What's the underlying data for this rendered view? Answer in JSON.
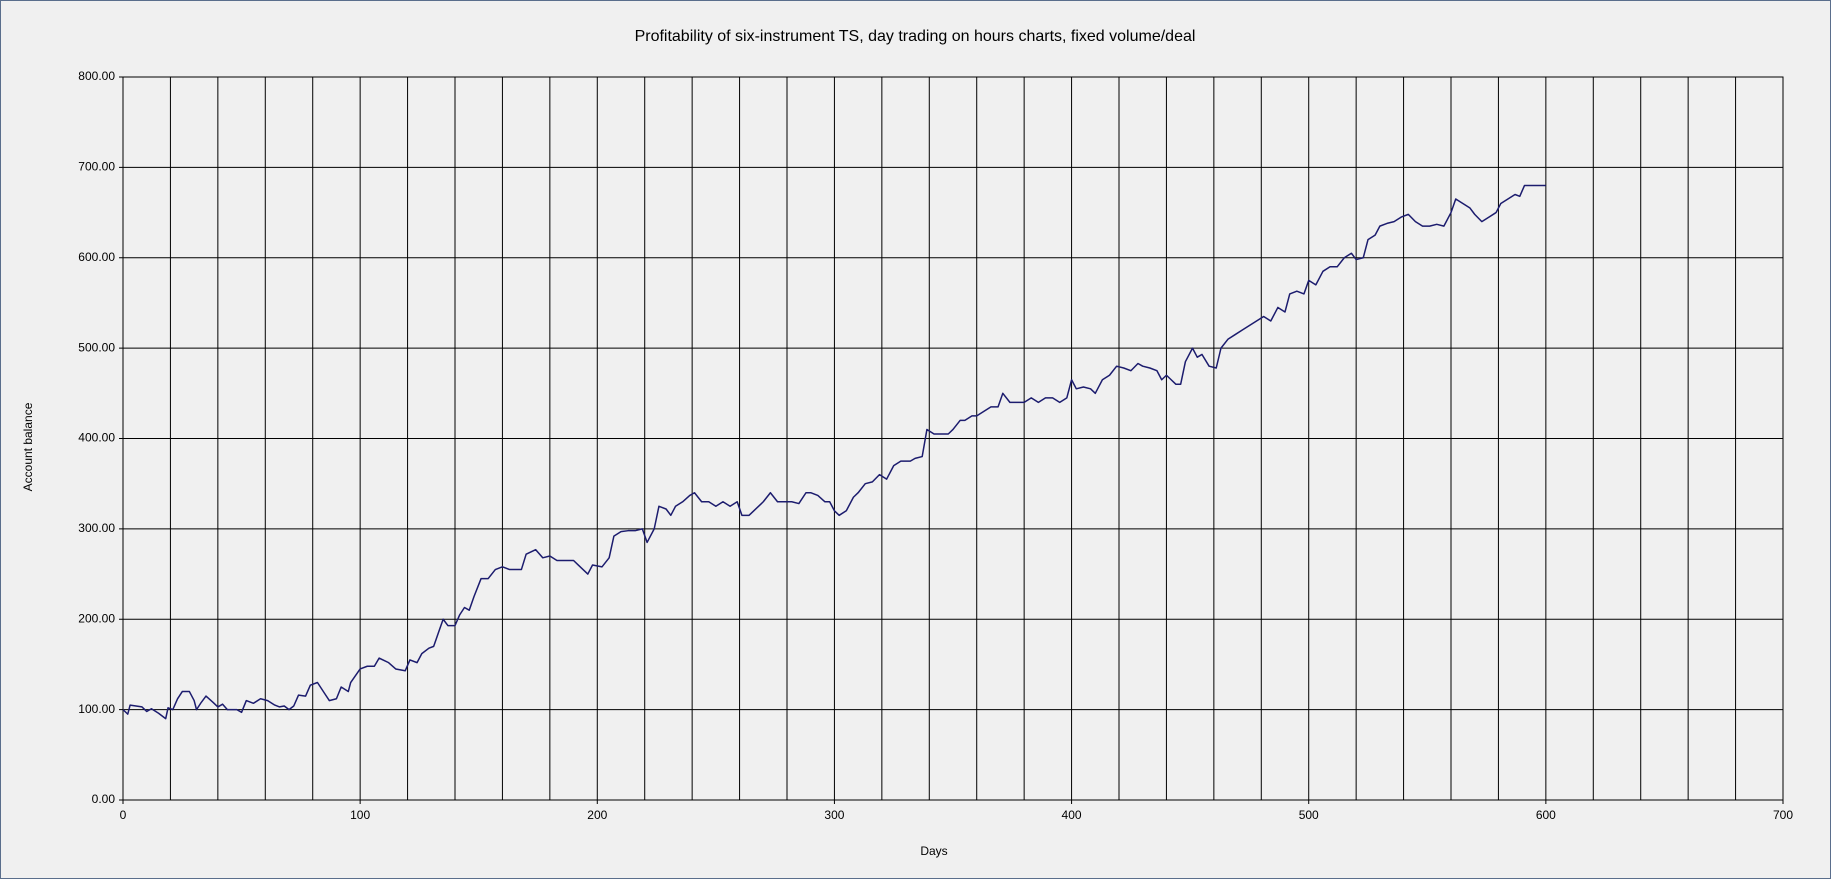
{
  "chart_data": {
    "type": "line",
    "title": "Profitability of six-instrument TS, day trading on hours charts, fixed volume/deal",
    "xlabel": "Days",
    "ylabel": "Account balance",
    "color": "#1c1c6e",
    "grid": true,
    "xlim": [
      0,
      700
    ],
    "xticks": [
      0,
      100,
      200,
      300,
      400,
      500,
      600,
      700
    ],
    "xgrid": [
      0,
      20,
      40,
      60,
      80,
      100,
      120,
      140,
      160,
      180,
      200,
      220,
      240,
      260,
      280,
      300,
      320,
      340,
      360,
      380,
      400,
      420,
      440,
      460,
      480,
      500,
      520,
      540,
      560,
      580,
      600,
      620,
      640,
      660,
      680,
      700
    ],
    "ylim": [
      0,
      800
    ],
    "yticks": [
      {
        "value": 0,
        "label": "0.00"
      },
      {
        "value": 100,
        "label": "100.00"
      },
      {
        "value": 200,
        "label": "200.00"
      },
      {
        "value": 300,
        "label": "300.00"
      },
      {
        "value": 400,
        "label": "400.00"
      },
      {
        "value": 500,
        "label": "500.00"
      },
      {
        "value": 600,
        "label": "600.00"
      },
      {
        "value": 700,
        "label": "700.00"
      },
      {
        "value": 800,
        "label": "800.00"
      }
    ],
    "x": [
      0,
      2,
      3,
      8,
      10,
      12,
      15,
      17,
      18,
      19,
      21,
      23,
      25,
      28,
      30,
      31,
      33,
      35,
      38,
      40,
      42,
      44,
      48,
      50,
      52,
      55,
      58,
      61,
      64,
      66,
      68,
      70,
      72,
      74,
      77,
      79,
      82,
      85,
      87,
      90,
      92,
      95,
      96,
      100,
      103,
      106,
      108,
      112,
      115,
      119,
      121,
      124,
      126,
      129,
      131,
      133,
      135,
      137,
      140,
      142,
      144,
      146,
      148,
      151,
      154,
      157,
      160,
      163,
      166,
      168,
      170,
      174,
      177,
      180,
      183,
      186,
      190,
      192,
      194,
      196,
      198,
      202,
      205,
      207,
      210,
      213,
      216,
      219,
      221,
      224,
      226,
      229,
      231,
      233,
      236,
      239,
      241,
      244,
      247,
      250,
      253,
      256,
      259,
      261,
      264,
      266,
      268,
      270,
      273,
      276,
      279,
      282,
      285,
      288,
      290,
      293,
      296,
      298,
      300,
      302,
      305,
      308,
      310,
      313,
      316,
      319,
      322,
      325,
      328,
      332,
      334,
      337,
      339,
      342,
      345,
      348,
      350,
      353,
      355,
      358,
      360,
      363,
      366,
      369,
      371,
      374,
      377,
      380,
      383,
      386,
      389,
      392,
      395,
      398,
      400,
      402,
      405,
      408,
      410,
      413,
      416,
      419,
      422,
      425,
      428,
      430,
      433,
      436,
      438,
      440,
      442,
      444,
      446,
      448,
      451,
      453,
      455,
      458,
      461,
      463,
      466,
      469,
      472,
      475,
      478,
      481,
      484,
      487,
      490,
      492,
      495,
      498,
      500,
      503,
      506,
      509,
      512,
      515,
      518,
      520,
      523,
      525,
      528,
      530,
      533,
      536,
      539,
      542,
      545,
      548,
      551,
      554,
      557,
      560,
      562,
      565,
      568,
      570,
      573,
      576,
      579,
      581,
      584,
      587,
      589,
      591,
      594,
      597,
      600
    ],
    "values": [
      100,
      95,
      105,
      103,
      98,
      101,
      96,
      92,
      90,
      102,
      100,
      112,
      120,
      120,
      110,
      100,
      108,
      115,
      108,
      103,
      106,
      100,
      100,
      97,
      110,
      107,
      112,
      110,
      105,
      103,
      104,
      100,
      104,
      116,
      115,
      127,
      130,
      118,
      110,
      112,
      125,
      120,
      130,
      145,
      148,
      148,
      157,
      152,
      145,
      143,
      155,
      152,
      162,
      168,
      170,
      185,
      200,
      193,
      193,
      205,
      213,
      210,
      225,
      245,
      245,
      255,
      258,
      255,
      255,
      255,
      272,
      277,
      268,
      270,
      265,
      265,
      265,
      260,
      255,
      250,
      260,
      258,
      268,
      292,
      297,
      298,
      298,
      300,
      285,
      300,
      325,
      322,
      315,
      325,
      330,
      337,
      340,
      330,
      330,
      325,
      330,
      325,
      330,
      315,
      315,
      320,
      325,
      330,
      340,
      330,
      330,
      330,
      328,
      340,
      340,
      337,
      330,
      330,
      320,
      315,
      320,
      335,
      340,
      350,
      352,
      360,
      355,
      370,
      375,
      375,
      378,
      380,
      410,
      405,
      405,
      405,
      410,
      420,
      420,
      425,
      425,
      430,
      435,
      435,
      450,
      440,
      440,
      440,
      445,
      440,
      445,
      445,
      440,
      445,
      465,
      455,
      457,
      455,
      450,
      465,
      470,
      480,
      478,
      475,
      483,
      480,
      478,
      475,
      465,
      470,
      465,
      460,
      460,
      485,
      500,
      490,
      493,
      480,
      478,
      500,
      510,
      515,
      520,
      525,
      530,
      535,
      530,
      545,
      540,
      560,
      563,
      560,
      575,
      570,
      585,
      590,
      590,
      600,
      605,
      598,
      600,
      620,
      625,
      635,
      638,
      640,
      645,
      648,
      640,
      635,
      635,
      637,
      635,
      650,
      665,
      660,
      655,
      648,
      640,
      645,
      650,
      660,
      665,
      670,
      668,
      680,
      680,
      680,
      680
    ]
  }
}
